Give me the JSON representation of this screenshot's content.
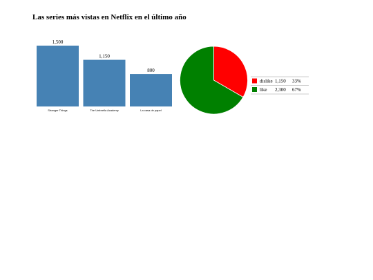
{
  "title": "Las series más vistas en Netflix en el último año",
  "chart_data": [
    {
      "type": "bar",
      "categories": [
        "Stranger Things",
        "The Umbrella Academy",
        "La casa de papel"
      ],
      "values": [
        1500,
        1150,
        800
      ],
      "value_labels": [
        "1,500",
        "1,150",
        "800"
      ],
      "ylim": [
        0,
        1500
      ],
      "color": "#4682b4",
      "grid": false
    },
    {
      "type": "pie",
      "slices": [
        {
          "label": "dislike",
          "value": 1150,
          "value_label": "1,150",
          "percent": "33%",
          "color": "#ff0000"
        },
        {
          "label": "like",
          "value": 2300,
          "value_label": "2,300",
          "percent": "67%",
          "color": "#008000"
        }
      ],
      "legend_position": "right"
    }
  ]
}
